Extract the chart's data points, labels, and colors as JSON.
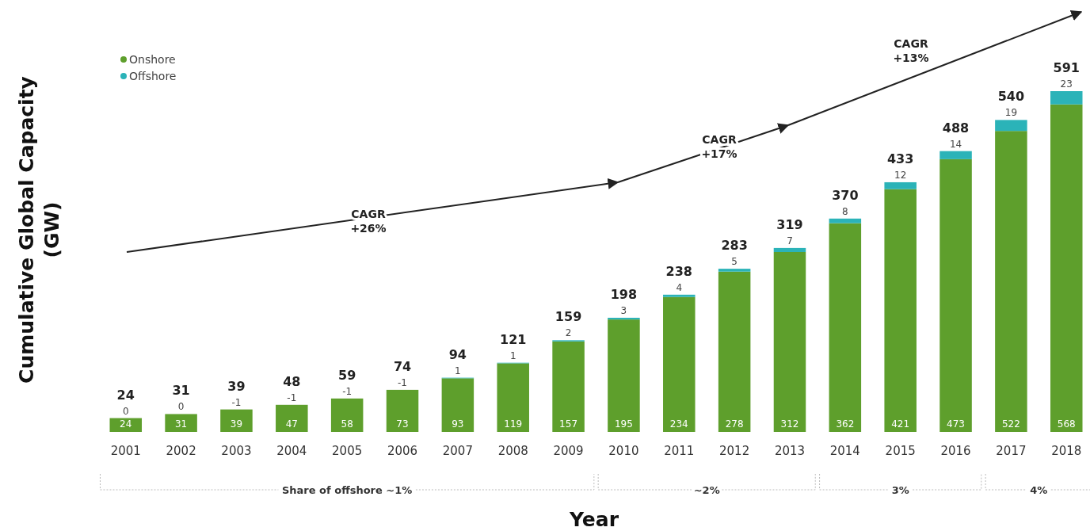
{
  "chart_data": {
    "type": "bar",
    "stacked": true,
    "xlabel": "Year",
    "ylabel": "Cumulative Global Capacity (GW)",
    "legend": "top left",
    "categories": [
      "2001",
      "2002",
      "2003",
      "2004",
      "2005",
      "2006",
      "2007",
      "2008",
      "2009",
      "2010",
      "2011",
      "2012",
      "2013",
      "2014",
      "2015",
      "2016",
      "2017",
      "2018"
    ],
    "series": [
      {
        "name": "Onshore",
        "color": "#5e9f2c",
        "values": [
          24,
          31,
          39,
          47,
          58,
          73,
          93,
          119,
          157,
          195,
          234,
          278,
          312,
          362,
          421,
          473,
          522,
          568
        ],
        "value_labels": [
          "24",
          "31",
          "39",
          "47",
          "58",
          "73",
          "93",
          "119",
          "157",
          "195",
          "234",
          "278",
          "312",
          "362",
          "421",
          "473",
          "522",
          "568"
        ]
      },
      {
        "name": "Offshore",
        "color": "#2bb3b8",
        "values": [
          0,
          0,
          null,
          null,
          null,
          null,
          1,
          1,
          2,
          3,
          4,
          5,
          7,
          8,
          12,
          14,
          19,
          23
        ],
        "value_labels": [
          "0",
          "0",
          "-1",
          "-1",
          "-1",
          "-1",
          "1",
          "1",
          "2",
          "3",
          "4",
          "5",
          "7",
          "8",
          "12",
          "14",
          "19",
          "23"
        ]
      }
    ],
    "totals": [
      "24",
      "31",
      "39",
      "48",
      "59",
      "74",
      "94",
      "121",
      "159",
      "198",
      "238",
      "283",
      "319",
      "370",
      "433",
      "488",
      "540",
      "591"
    ],
    "annotations": [
      "CAGR\n+26%",
      "CAGR\n+17%",
      "CAGR\n+13%",
      "Share of offshore ~1%",
      "~2%",
      "3%",
      "4%"
    ]
  }
}
